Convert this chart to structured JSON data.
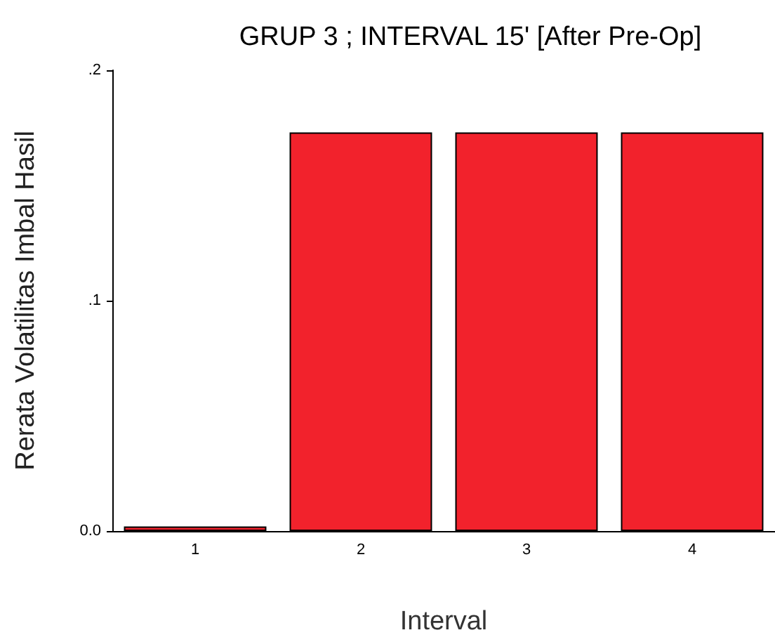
{
  "chart_data": {
    "type": "bar",
    "title": "GRUP 3 ; INTERVAL 15' [After Pre-Op]",
    "xlabel": "Interval",
    "ylabel": "Rerata Volatilitas Imbal Hasil",
    "categories": [
      "1",
      "2",
      "3",
      "4"
    ],
    "values": [
      0.002,
      0.173,
      0.173,
      0.173
    ],
    "color": "#f2222c",
    "ylim": [
      0,
      0.2
    ],
    "yticks": [
      {
        "value": 0,
        "label": "0.0"
      },
      {
        "value": 0.1,
        "label": ".1"
      },
      {
        "value": 0.2,
        "label": ".2"
      }
    ],
    "grid": false
  }
}
